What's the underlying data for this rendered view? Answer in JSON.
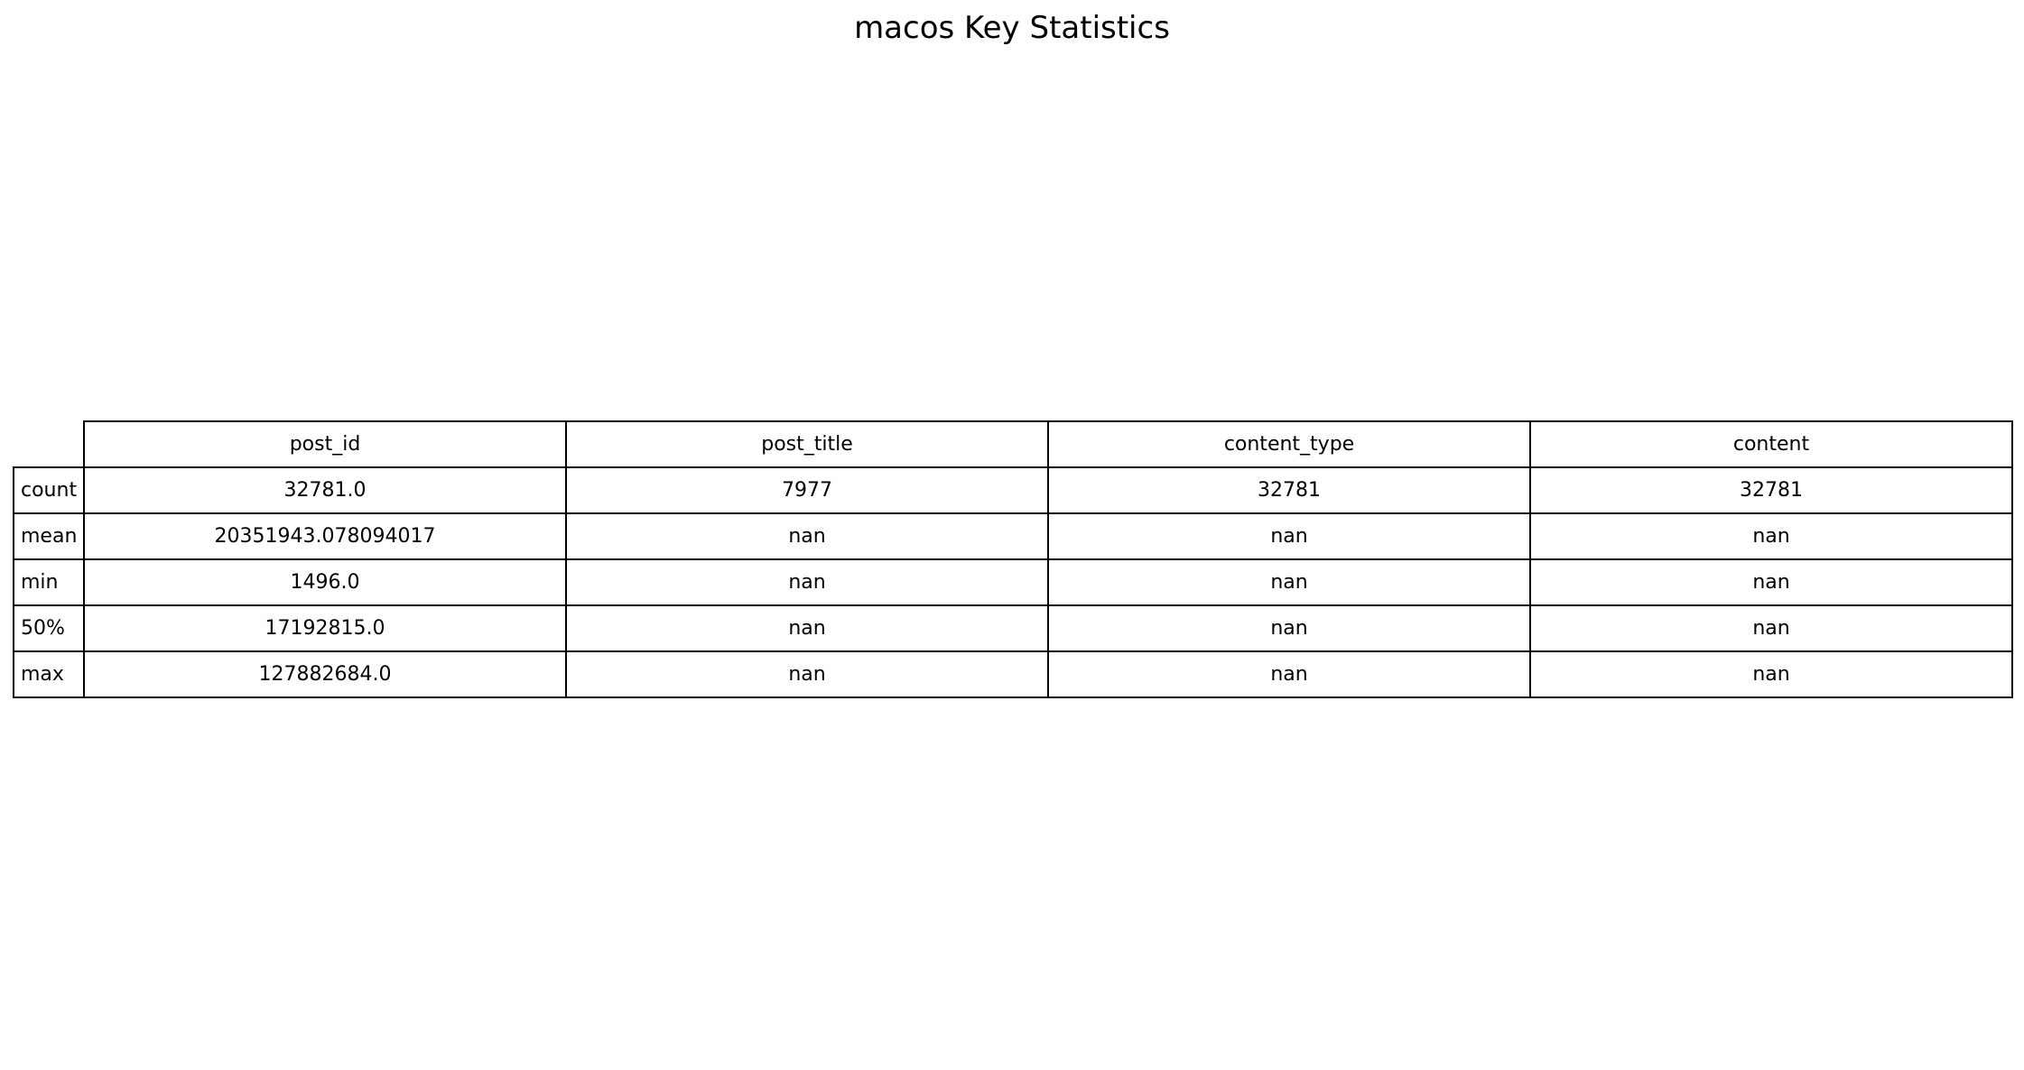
{
  "chart_data": {
    "type": "table",
    "title": "macos Key Statistics",
    "columns": [
      "post_id",
      "post_title",
      "content_type",
      "content"
    ],
    "rows": [
      {
        "label": "count",
        "cells": [
          "32781.0",
          "7977",
          "32781",
          "32781"
        ]
      },
      {
        "label": "mean",
        "cells": [
          "20351943.078094017",
          "nan",
          "nan",
          "nan"
        ]
      },
      {
        "label": "min",
        "cells": [
          "1496.0",
          "nan",
          "nan",
          "nan"
        ]
      },
      {
        "label": "50%",
        "cells": [
          "17192815.0",
          "nan",
          "nan",
          "nan"
        ]
      },
      {
        "label": "max",
        "cells": [
          "127882684.0",
          "nan",
          "nan",
          "nan"
        ]
      }
    ]
  }
}
